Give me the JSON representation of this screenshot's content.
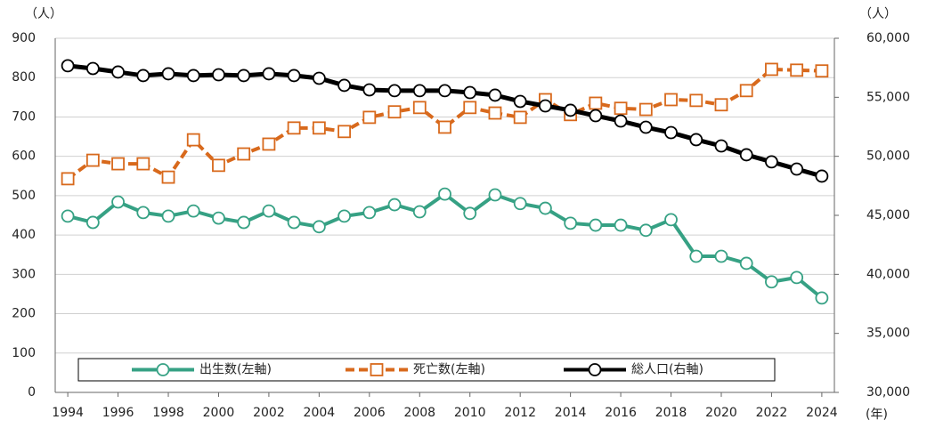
{
  "chart_data": {
    "type": "line",
    "y_unit_label": "（人）",
    "y2_unit_label": "（人）",
    "x_unit_label": "(年)",
    "x": [
      1994,
      1995,
      1996,
      1997,
      1998,
      1999,
      2000,
      2001,
      2002,
      2003,
      2004,
      2005,
      2006,
      2007,
      2008,
      2009,
      2010,
      2011,
      2012,
      2013,
      2014,
      2015,
      2016,
      2017,
      2018,
      2019,
      2020,
      2021,
      2022,
      2023,
      2024
    ],
    "xlim": [
      1993.5,
      2024.5
    ],
    "xticks": [
      1994,
      1996,
      1998,
      2000,
      2002,
      2004,
      2006,
      2008,
      2010,
      2012,
      2014,
      2016,
      2018,
      2020,
      2022,
      2024
    ],
    "ylim": [
      0,
      900
    ],
    "yticks": [
      0,
      100,
      200,
      300,
      400,
      500,
      600,
      700,
      800,
      900
    ],
    "y2lim": [
      30000,
      60000
    ],
    "y2ticks": [
      {
        "value": 30000,
        "label": "30,000"
      },
      {
        "value": 35000,
        "label": "35,000"
      },
      {
        "value": 40000,
        "label": "40,000"
      },
      {
        "value": 45000,
        "label": "45,000"
      },
      {
        "value": 50000,
        "label": "50,000"
      },
      {
        "value": 55000,
        "label": "55,000"
      },
      {
        "value": 60000,
        "label": "60,000"
      }
    ],
    "grid": true,
    "legend": "bottom",
    "series": [
      {
        "name": "出生数(左軸)",
        "color": "#36a184",
        "marker": "circle",
        "dash": false,
        "axis": "y",
        "values": [
          448,
          432,
          484,
          457,
          448,
          461,
          443,
          432,
          461,
          432,
          421,
          448,
          457,
          477,
          459,
          504,
          455,
          502,
          480,
          468,
          430,
          425,
          425,
          412,
          439,
          346,
          346,
          328,
          281,
          292,
          240
        ]
      },
      {
        "name": "死亡数(左軸)",
        "color": "#d8691c",
        "marker": "square",
        "dash": true,
        "axis": "y",
        "values": [
          543,
          590,
          581,
          581,
          547,
          642,
          577,
          606,
          631,
          672,
          672,
          663,
          699,
          713,
          724,
          674,
          724,
          710,
          699,
          744,
          706,
          735,
          722,
          719,
          744,
          742,
          731,
          767,
          821,
          819,
          817
        ]
      },
      {
        "name": "総人口(右軸)",
        "color": "#000000",
        "marker": "circle",
        "dash": false,
        "axis": "y2",
        "values": [
          57670,
          57440,
          57140,
          56840,
          56990,
          56840,
          56910,
          56840,
          56990,
          56840,
          56610,
          56010,
          55630,
          55560,
          55560,
          55560,
          55400,
          55180,
          54650,
          54270,
          53900,
          53440,
          52990,
          52460,
          52010,
          51410,
          50880,
          50130,
          49530,
          48920,
          48320
        ]
      }
    ]
  }
}
